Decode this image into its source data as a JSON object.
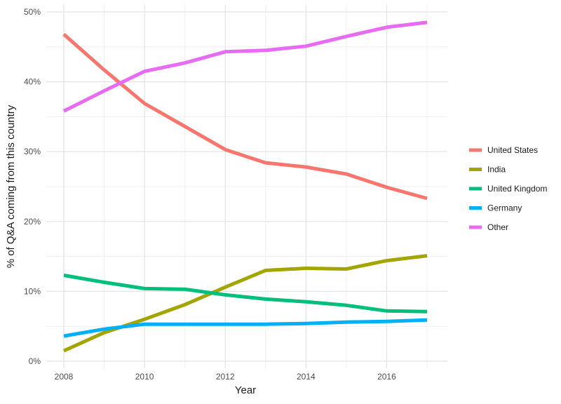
{
  "chart_data": {
    "type": "line",
    "title": "",
    "xlabel": "Year",
    "ylabel": "% of Q&A coming from this country",
    "x": [
      2008,
      2009,
      2010,
      2011,
      2012,
      2013,
      2014,
      2015,
      2016,
      2017
    ],
    "xlim": [
      2008,
      2017
    ],
    "ylim": [
      0,
      50
    ],
    "x_ticks": [
      2008,
      2010,
      2012,
      2014,
      2016
    ],
    "x_tick_labels": [
      "2008",
      "2010",
      "2012",
      "2014",
      "2016"
    ],
    "y_ticks": [
      0,
      10,
      20,
      30,
      40,
      50
    ],
    "y_tick_labels": [
      "0%",
      "10%",
      "20%",
      "30%",
      "40%",
      "50%"
    ],
    "grid": true,
    "legend_position": "right",
    "series": [
      {
        "name": "United States",
        "color": "#f8766d",
        "values": [
          46.8,
          41.7,
          36.9,
          33.6,
          30.3,
          28.4,
          27.8,
          26.8,
          24.9,
          23.3
        ]
      },
      {
        "name": "India",
        "color": "#a3a500",
        "values": [
          1.5,
          4.1,
          6.0,
          8.1,
          10.6,
          13.0,
          13.3,
          13.2,
          14.4,
          15.1
        ]
      },
      {
        "name": "United Kingdom",
        "color": "#00bf7d",
        "values": [
          12.3,
          11.3,
          10.4,
          10.3,
          9.5,
          8.9,
          8.5,
          8.0,
          7.2,
          7.1
        ]
      },
      {
        "name": "Germany",
        "color": "#00b0f6",
        "values": [
          3.6,
          4.6,
          5.3,
          5.3,
          5.3,
          5.3,
          5.4,
          5.6,
          5.7,
          5.9
        ]
      },
      {
        "name": "Other",
        "color": "#e76bf3",
        "values": [
          35.8,
          38.7,
          41.5,
          42.7,
          44.3,
          44.5,
          45.1,
          46.5,
          47.8,
          48.5
        ]
      }
    ]
  }
}
